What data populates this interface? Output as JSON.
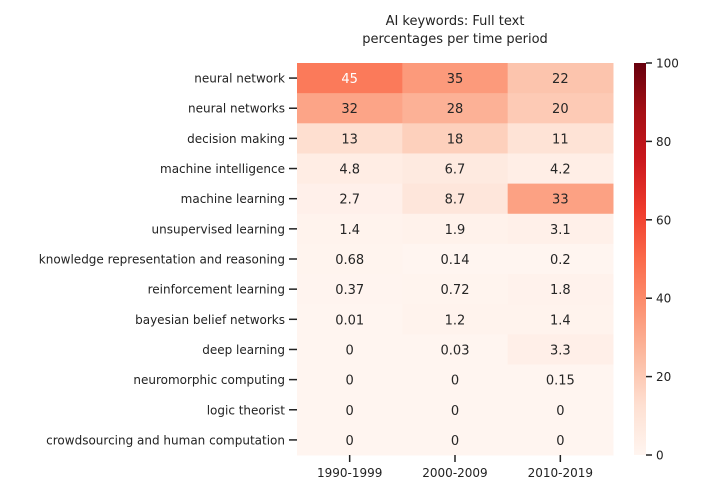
{
  "chart_data": {
    "type": "heatmap",
    "title": [
      "AI keywords: Full text",
      "percentages per time period"
    ],
    "columns": [
      "1990-1999",
      "2000-2009",
      "2010-2019"
    ],
    "rows": [
      {
        "label": "neural network",
        "values": [
          45,
          35,
          22
        ],
        "labels": [
          "45",
          "35",
          "22"
        ]
      },
      {
        "label": "neural networks",
        "values": [
          32,
          28,
          20
        ],
        "labels": [
          "32",
          "28",
          "20"
        ]
      },
      {
        "label": "decision making",
        "values": [
          13,
          18,
          11
        ],
        "labels": [
          "13",
          "18",
          "11"
        ]
      },
      {
        "label": "machine intelligence",
        "values": [
          4.8,
          6.7,
          4.2
        ],
        "labels": [
          "4.8",
          "6.7",
          "4.2"
        ]
      },
      {
        "label": "machine learning",
        "values": [
          2.7,
          8.7,
          33
        ],
        "labels": [
          "2.7",
          "8.7",
          "33"
        ]
      },
      {
        "label": "unsupervised learning",
        "values": [
          1.4,
          1.9,
          3.1
        ],
        "labels": [
          "1.4",
          "1.9",
          "3.1"
        ]
      },
      {
        "label": "knowledge representation and reasoning",
        "values": [
          0.68,
          0.14,
          0.2
        ],
        "labels": [
          "0.68",
          "0.14",
          "0.2"
        ]
      },
      {
        "label": "reinforcement learning",
        "values": [
          0.37,
          0.72,
          1.8
        ],
        "labels": [
          "0.37",
          "0.72",
          "1.8"
        ]
      },
      {
        "label": "bayesian belief networks",
        "values": [
          0.01,
          1.2,
          1.4
        ],
        "labels": [
          "0.01",
          "1.2",
          "1.4"
        ]
      },
      {
        "label": "deep learning",
        "values": [
          0,
          0.03,
          3.3
        ],
        "labels": [
          "0",
          "0.03",
          "3.3"
        ]
      },
      {
        "label": "neuromorphic computing",
        "values": [
          0,
          0,
          0.15
        ],
        "labels": [
          "0",
          "0",
          "0.15"
        ]
      },
      {
        "label": "logic theorist",
        "values": [
          0,
          0,
          0
        ],
        "labels": [
          "0",
          "0",
          "0"
        ]
      },
      {
        "label": "crowdsourcing and human computation",
        "values": [
          0,
          0,
          0
        ],
        "labels": [
          "0",
          "0",
          "0"
        ]
      }
    ],
    "colorbar": {
      "range": [
        0,
        100
      ],
      "ticks": [
        "0",
        "20",
        "40",
        "60",
        "80",
        "100"
      ],
      "colormap": "Reds"
    },
    "legend": "colorbar-right",
    "grid": false
  }
}
